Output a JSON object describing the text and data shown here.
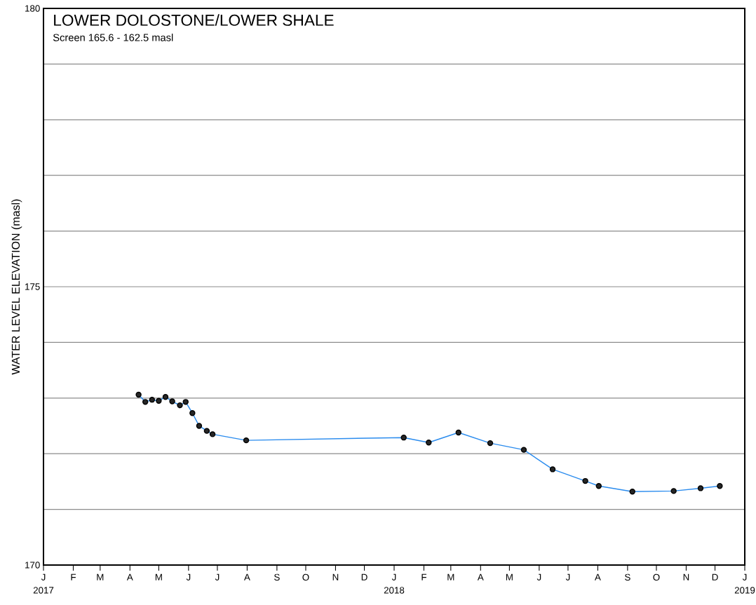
{
  "chart_data": {
    "type": "line",
    "title": "LOWER DOLOSTONE/LOWER SHALE",
    "subtitle": "Screen 165.6 - 162.5 masl",
    "ylabel": "WATER LEVEL ELEVATION (masl)",
    "x": [
      "2017-04-10",
      "2017-04-17",
      "2017-04-24",
      "2017-05-01",
      "2017-05-08",
      "2017-05-15",
      "2017-05-23",
      "2017-05-29",
      "2017-06-05",
      "2017-06-12",
      "2017-06-20",
      "2017-06-26",
      "2017-07-31",
      "2018-01-11",
      "2018-02-06",
      "2018-03-09",
      "2018-04-11",
      "2018-05-16",
      "2018-06-15",
      "2018-07-19",
      "2018-08-02",
      "2018-09-06",
      "2018-10-19",
      "2018-11-16",
      "2018-12-06"
    ],
    "series": [
      {
        "color": "#2b8cee",
        "values": [
          173.06,
          172.93,
          172.97,
          172.95,
          173.02,
          172.94,
          172.87,
          172.93,
          172.73,
          172.5,
          172.41,
          172.35,
          172.24,
          172.29,
          172.2,
          172.38,
          172.19,
          172.07,
          171.72,
          171.51,
          171.42,
          171.32,
          171.33,
          171.38,
          171.42
        ]
      }
    ],
    "xlim": [
      "2017-01-01",
      "2019-01-01"
    ],
    "xticks": [
      {
        "value": "2017-01-01",
        "label": "J 2017"
      },
      {
        "value": "2017-02-01",
        "label": "F"
      },
      {
        "value": "2017-03-01",
        "label": "M"
      },
      {
        "value": "2017-04-01",
        "label": "A"
      },
      {
        "value": "2017-05-01",
        "label": "M"
      },
      {
        "value": "2017-06-01",
        "label": "J"
      },
      {
        "value": "2017-07-01",
        "label": "J"
      },
      {
        "value": "2017-08-01",
        "label": "A"
      },
      {
        "value": "2017-09-01",
        "label": "S"
      },
      {
        "value": "2017-10-01",
        "label": "O"
      },
      {
        "value": "2017-11-01",
        "label": "N"
      },
      {
        "value": "2017-12-01",
        "label": "D"
      },
      {
        "value": "2018-01-01",
        "label": "J 2018"
      },
      {
        "value": "2018-02-01",
        "label": "F"
      },
      {
        "value": "2018-03-01",
        "label": "M"
      },
      {
        "value": "2018-04-01",
        "label": "A"
      },
      {
        "value": "2018-05-01",
        "label": "M"
      },
      {
        "value": "2018-06-01",
        "label": "J"
      },
      {
        "value": "2018-07-01",
        "label": "J"
      },
      {
        "value": "2018-08-01",
        "label": "A"
      },
      {
        "value": "2018-09-01",
        "label": "S"
      },
      {
        "value": "2018-10-01",
        "label": "O"
      },
      {
        "value": "2018-11-01",
        "label": "N"
      },
      {
        "value": "2018-12-01",
        "label": "D"
      },
      {
        "value": "2019-01-01",
        "label": "J 2019"
      }
    ],
    "ylim": [
      170,
      180
    ],
    "yticks": [
      170,
      {
        "value": 171,
        "label": null
      },
      {
        "value": 172,
        "label": null
      },
      {
        "value": 173,
        "label": null
      },
      {
        "value": 174,
        "label": null
      },
      175,
      {
        "value": 176,
        "label": null
      },
      {
        "value": 177,
        "label": null
      },
      {
        "value": 178,
        "label": null
      },
      {
        "value": 179,
        "label": null
      },
      180
    ],
    "grid": "y",
    "marker": "circle",
    "line_style": "solid"
  }
}
